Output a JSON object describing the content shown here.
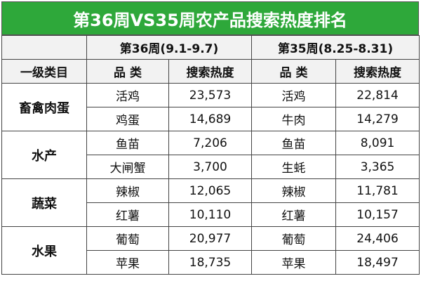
{
  "title": "第36周VS35周农产品搜索热度排名",
  "header": {
    "week_a": "第36周(9.1-9.7)",
    "week_b": "第35周(8.25-8.31)",
    "columns": [
      "一级类目",
      "品 类",
      "搜索热度",
      "品 类",
      "搜索热度"
    ]
  },
  "groups": [
    {
      "category": "畜禽肉蛋",
      "rows": [
        [
          "活鸡",
          "23,573",
          "活鸡",
          "22,814"
        ],
        [
          "鸡蛋",
          "14,689",
          "牛肉",
          "14,279"
        ]
      ]
    },
    {
      "category": "水产",
      "rows": [
        [
          "鱼苗",
          "7,206",
          "鱼苗",
          "8,091"
        ],
        [
          "大闸蟹",
          "3,700",
          "生蚝",
          "3,365"
        ]
      ]
    },
    {
      "category": "蔬菜",
      "rows": [
        [
          "辣椒",
          "12,065",
          "辣椒",
          "11,781"
        ],
        [
          "红薯",
          "10,110",
          "红薯",
          "10,157"
        ]
      ]
    },
    {
      "category": "水果",
      "rows": [
        [
          "葡萄",
          "20,977",
          "葡萄",
          "24,406"
        ],
        [
          "苹果",
          "18,735",
          "苹果",
          "18,497"
        ]
      ]
    }
  ]
}
